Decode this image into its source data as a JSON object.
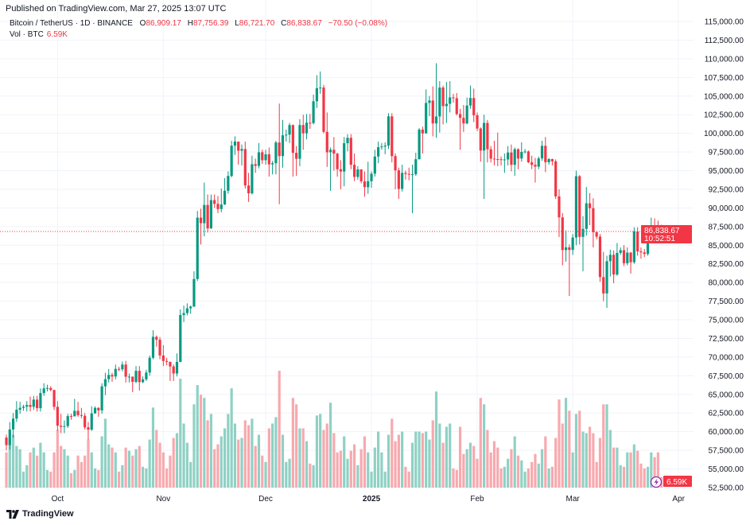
{
  "header": {
    "published": "Published on TradingView.com, Mar 27, 2025 13:07 UTC",
    "symbol": "Bitcoin / TetherUS · 1D · BINANCE",
    "open_label": "O",
    "open": "86,909.17",
    "high_label": "H",
    "high": "87,756.39",
    "low_label": "L",
    "low": "86,721.70",
    "close_label": "C",
    "close": "86,838.67",
    "change": "−70.50 (−0.08%)",
    "vol_label": "Vol · BTC",
    "vol_value": "6.59K"
  },
  "price_tag": {
    "price": "86,838.67",
    "countdown": "10:52:51"
  },
  "volume_tag": "6.59K",
  "footer": {
    "logo_text": "TradingView"
  },
  "colors": {
    "up": "#089981",
    "down": "#f23645",
    "up_volume": "#8fd1c4",
    "down_volume": "#f7a9ae",
    "lightning": "#9c27b0"
  },
  "chart_data": {
    "type": "candlestick",
    "symbol": "BTCUSDT",
    "interval": "1D",
    "first_date": "2024-09-16",
    "last_date": "2025-03-27",
    "ylim": [
      52500,
      115000
    ],
    "y_ticks": [
      "115,000.00",
      "112,500.00",
      "110,000.00",
      "107,500.00",
      "105,000.00",
      "102,500.00",
      "100,000.00",
      "97,500.00",
      "95,000.00",
      "92,500.00",
      "90,000.00",
      "87,500.00",
      "85,000.00",
      "82,500.00",
      "80,000.00",
      "77,500.00",
      "75,000.00",
      "72,500.00",
      "70,000.00",
      "67,500.00",
      "65,000.00",
      "62,500.00",
      "60,000.00",
      "57,500.00",
      "55,000.00",
      "52,500.00"
    ],
    "x_ticks": [
      {
        "label": "Oct",
        "date": "2024-10-01",
        "bold": false
      },
      {
        "label": "Nov",
        "date": "2024-11-01",
        "bold": false
      },
      {
        "label": "Dec",
        "date": "2024-12-01",
        "bold": false
      },
      {
        "label": "2025",
        "date": "2025-01-01",
        "bold": true
      },
      {
        "label": "Feb",
        "date": "2025-02-01",
        "bold": false
      },
      {
        "label": "Mar",
        "date": "2025-03-01",
        "bold": false
      },
      {
        "label": "Apr",
        "date": "2025-04-01",
        "bold": false
      }
    ],
    "last_price": 86838.67,
    "first_open": 59200,
    "close": [
      58200,
      60300,
      61750,
      62950,
      63200,
      63350,
      63580,
      63330,
      64300,
      63150,
      65180,
      65800,
      65850,
      65600,
      63330,
      60800,
      60650,
      60750,
      62090,
      62050,
      62800,
      62220,
      62130,
      60580,
      60270,
      62450,
      63190,
      62850,
      66080,
      67040,
      67610,
      67400,
      68420,
      68370,
      69000,
      67370,
      67380,
      66680,
      68160,
      66640,
      67010,
      67930,
      69910,
      72720,
      72330,
      70220,
      69480,
      69360,
      68740,
      67800,
      69360,
      75640,
      75900,
      76540,
      76780,
      80470,
      88700,
      87950,
      90400,
      87250,
      91050,
      90550,
      89850,
      90460,
      92300,
      94290,
      98350,
      98900,
      97670,
      97900,
      93010,
      91960,
      95860,
      95640,
      97460,
      96400,
      97190,
      95840,
      96000,
      98770,
      96950,
      99740,
      99830,
      101110,
      97390,
      96590,
      101120,
      100000,
      101430,
      101370,
      104300,
      106050,
      106140,
      100200,
      97460,
      97800,
      97280,
      95190,
      94880,
      98680,
      99400,
      95790,
      94160,
      95160,
      93570,
      92780,
      93580,
      94590,
      96890,
      98140,
      98230,
      98360,
      102280,
      96950,
      95040,
      92550,
      94700,
      94560,
      94490,
      94520,
      96530,
      100500,
      99990,
      104080,
      104400,
      101330,
      102260,
      106140,
      103650,
      103960,
      104820,
      104710,
      102590,
      102080,
      101330,
      103730,
      104740,
      102430,
      100650,
      97690,
      101400,
      97870,
      96610,
      96550,
      96530,
      96480,
      96500,
      97430,
      95780,
      97870,
      96620,
      97510,
      97570,
      96120,
      95780,
      95540,
      96640,
      98330,
      96130,
      96550,
      96250,
      91550,
      88740,
      84350,
      84710,
      84370,
      86030,
      94260,
      86120,
      87190,
      90620,
      89960,
      86750,
      86150,
      80730,
      78530,
      82860,
      83720,
      81070,
      83970,
      84340,
      82580,
      84010,
      82720,
      86850,
      84170,
      84040,
      83830,
      86080,
      87500,
      87420,
      86900,
      86839
    ],
    "high": [
      59600,
      61300,
      62500,
      64100,
      64000,
      63600,
      64100,
      64700,
      64800,
      64800,
      65800,
      66500,
      66300,
      66100,
      65600,
      64100,
      62400,
      61500,
      62400,
      62400,
      64400,
      64000,
      63200,
      62500,
      61300,
      63400,
      63400,
      63300,
      66500,
      67900,
      68400,
      67900,
      69000,
      68700,
      69400,
      69500,
      67800,
      67400,
      68800,
      68800,
      67400,
      68300,
      70200,
      73600,
      72900,
      72700,
      71600,
      69900,
      69400,
      69000,
      70500,
      76400,
      76900,
      77200,
      76900,
      81500,
      89600,
      89900,
      93400,
      91800,
      91800,
      91800,
      91600,
      92600,
      94000,
      94900,
      99000,
      99600,
      98700,
      98500,
      98900,
      94700,
      97000,
      96600,
      98700,
      97800,
      97800,
      98100,
      96300,
      99000,
      104000,
      101800,
      100500,
      101400,
      101200,
      98300,
      101900,
      102500,
      102600,
      102600,
      105200,
      107800,
      108300,
      106500,
      102800,
      98100,
      99500,
      97400,
      96400,
      99500,
      99900,
      99900,
      97300,
      95600,
      95200,
      94900,
      96200,
      94900,
      97800,
      98900,
      98700,
      98800,
      102700,
      102700,
      97300,
      95400,
      95800,
      95000,
      95400,
      95800,
      97400,
      100700,
      100900,
      105900,
      105000,
      106300,
      109400,
      107000,
      106400,
      106900,
      107000,
      105300,
      105400,
      103300,
      103800,
      104800,
      106400,
      106000,
      102800,
      100800,
      102500,
      101800,
      98300,
      99000,
      100100,
      96900,
      97300,
      98300,
      98500,
      98100,
      98000,
      98800,
      97900,
      97700,
      97000,
      96700,
      96900,
      99000,
      99500,
      96700,
      96600,
      96500,
      92500,
      89300,
      87000,
      85100,
      86500,
      95000,
      94400,
      88900,
      92800,
      92000,
      91300,
      86900,
      86500,
      84100,
      83600,
      84400,
      84300,
      85300,
      84700,
      85000,
      84700,
      84100,
      87400,
      87400,
      84700,
      84500,
      86200,
      88700,
      88600,
      88300,
      87756
    ],
    "low": [
      57500,
      57600,
      59200,
      61300,
      62400,
      62800,
      62700,
      62700,
      62900,
      62700,
      62700,
      64800,
      65400,
      65400,
      62900,
      60100,
      59800,
      59800,
      60500,
      61600,
      62100,
      62000,
      61800,
      60300,
      58900,
      60100,
      62400,
      62000,
      62400,
      64900,
      66600,
      66700,
      67000,
      68100,
      68100,
      66600,
      66600,
      65300,
      66500,
      65500,
      66500,
      66800,
      67500,
      69700,
      71400,
      69700,
      68800,
      68900,
      66800,
      66800,
      67400,
      69300,
      74700,
      75600,
      75800,
      76700,
      80200,
      85100,
      86200,
      86700,
      87200,
      90000,
      89300,
      89400,
      90400,
      91900,
      94100,
      97100,
      95800,
      95700,
      92600,
      90800,
      91800,
      94700,
      95300,
      95900,
      95800,
      94200,
      94500,
      94500,
      90500,
      95400,
      98900,
      98700,
      94200,
      94300,
      95600,
      97800,
      99200,
      100600,
      101200,
      103400,
      105300,
      100000,
      95500,
      92300,
      95000,
      94200,
      92500,
      92900,
      97600,
      95200,
      93600,
      93800,
      93300,
      91500,
      91900,
      92700,
      94200,
      96000,
      97800,
      97200,
      97900,
      96100,
      92500,
      91200,
      92200,
      93800,
      93700,
      89300,
      94300,
      96500,
      97300,
      100100,
      102300,
      99600,
      99400,
      100100,
      101200,
      101400,
      102800,
      104100,
      102400,
      97800,
      100200,
      101200,
      103300,
      101500,
      100300,
      96200,
      91200,
      96100,
      96100,
      95700,
      95600,
      95700,
      94700,
      95700,
      94900,
      94300,
      95200,
      96200,
      97300,
      96000,
      95200,
      93400,
      95200,
      96300,
      94800,
      95800,
      95700,
      91200,
      86100,
      82300,
      82800,
      78200,
      83700,
      85000,
      85100,
      81500,
      86300,
      87700,
      84700,
      85800,
      80100,
      77500,
      76600,
      80800,
      79900,
      80900,
      83700,
      82200,
      82300,
      81200,
      82500,
      83600,
      83200,
      83400,
      83600,
      85800,
      86300,
      85900,
      86722
    ],
    "volume": [
      22000,
      30000,
      33000,
      26000,
      24000,
      10000,
      14000,
      22000,
      25000,
      20000,
      28000,
      22000,
      11000,
      10000,
      22000,
      36000,
      26000,
      24000,
      20000,
      9000,
      11000,
      20000,
      16000,
      20000,
      30000,
      22000,
      12000,
      11000,
      32000,
      43000,
      27000,
      25000,
      22000,
      10000,
      14000,
      25000,
      23000,
      20000,
      24000,
      26000,
      13000,
      12000,
      30000,
      50000,
      36000,
      28000,
      22000,
      12000,
      20000,
      31000,
      34000,
      68000,
      40000,
      28000,
      16000,
      52000,
      64000,
      58000,
      56000,
      42000,
      46000,
      24000,
      27000,
      32000,
      37000,
      46000,
      62000,
      40000,
      30000,
      31000,
      42000,
      39000,
      43000,
      26000,
      33000,
      20000,
      16000,
      37000,
      40000,
      44000,
      73000,
      33000,
      16000,
      18000,
      56000,
      52000,
      37000,
      37000,
      29000,
      15000,
      14000,
      45000,
      46000,
      36000,
      40000,
      53000,
      34000,
      22000,
      23000,
      32000,
      18000,
      23000,
      27000,
      14000,
      24000,
      32000,
      22000,
      10000,
      25000,
      35000,
      22000,
      10000,
      33000,
      43000,
      29000,
      33000,
      35000,
      13000,
      10000,
      28000,
      35000,
      35000,
      34000,
      35000,
      30000,
      42000,
      60000,
      40000,
      28000,
      38000,
      40000,
      12000,
      11000,
      38000,
      21000,
      24000,
      28000,
      26000,
      18000,
      56000,
      52000,
      36000,
      22000,
      29000,
      25000,
      12000,
      13000,
      18000,
      24000,
      32000,
      20000,
      17000,
      10000,
      12000,
      16000,
      21000,
      15000,
      24000,
      32000,
      12000,
      13000,
      31000,
      55000,
      40000,
      56000,
      48000,
      22000,
      46000,
      48000,
      35000,
      34000,
      38000,
      34000,
      16000,
      31000,
      52000,
      52000,
      36000,
      25000,
      25000,
      14000,
      13000,
      22000,
      22000,
      27000,
      23000,
      15000,
      12000,
      13000,
      22000,
      19000,
      22000,
      6590
    ]
  }
}
